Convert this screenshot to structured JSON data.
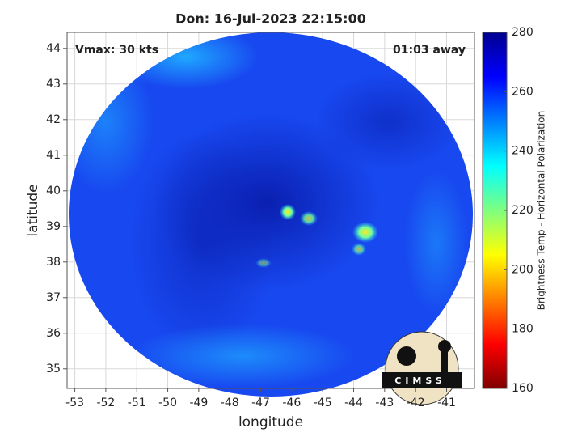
{
  "chart_data": {
    "type": "image",
    "title": "Don: 16-Jul-2023 22:15:00",
    "annotations": [
      "Vmax: 30 kts",
      "01:03 away"
    ],
    "xlabel": "longitude",
    "ylabel": "latitude",
    "xlim": [
      -53.25,
      -40.1
    ],
    "xticks": [
      -53,
      -52,
      -51,
      -50,
      -49,
      -48,
      -47,
      -46,
      -45,
      -44,
      -43,
      -42,
      -41
    ],
    "ylim": [
      34.45,
      44.45
    ],
    "yticks": [
      35,
      36,
      37,
      38,
      39,
      40,
      41,
      42,
      43,
      44
    ],
    "grid": true,
    "colorbar": {
      "label": "Brightness Temp - Horizontal Polarization",
      "lim": [
        160,
        280
      ],
      "ticks": [
        160,
        180,
        200,
        220,
        240,
        260,
        280
      ],
      "colormap": "jet",
      "reversed": true
    },
    "logo_text": "CIMSS"
  }
}
